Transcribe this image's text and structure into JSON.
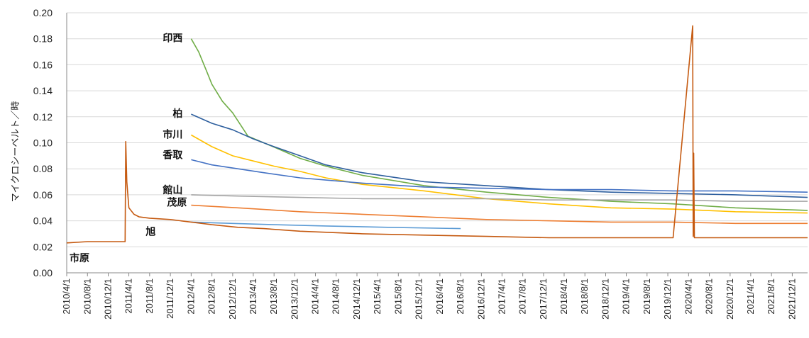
{
  "chart_data": {
    "type": "line",
    "title": "",
    "xlabel": "",
    "ylabel": "マイクロシーベルト／時",
    "ylim": [
      0,
      0.2
    ],
    "yticks": [
      "0.00",
      "0.02",
      "0.04",
      "0.06",
      "0.08",
      "0.10",
      "0.12",
      "0.14",
      "0.16",
      "0.18",
      "0.20"
    ],
    "xlim": [
      "2010-04-01",
      "2022-03-01"
    ],
    "xticks": [
      "2010/4/1",
      "2010/8/1",
      "2010/12/1",
      "2011/4/1",
      "2011/8/1",
      "2011/12/1",
      "2012/4/1",
      "2012/8/1",
      "2012/12/1",
      "2013/4/1",
      "2013/8/1",
      "2013/12/1",
      "2014/4/1",
      "2014/8/1",
      "2014/12/1",
      "2015/4/1",
      "2015/8/1",
      "2015/12/1",
      "2016/4/1",
      "2016/8/1",
      "2016/12/1",
      "2017/4/1",
      "2017/8/1",
      "2017/12/1",
      "2018/4/1",
      "2018/8/1",
      "2018/12/1",
      "2019/4/1",
      "2019/8/1",
      "2019/12/1",
      "2020/4/1",
      "2020/8/1",
      "2020/12/1",
      "2021/4/1",
      "2021/8/1",
      "2021/12/1"
    ],
    "grid": "horizontal",
    "series": [
      {
        "name": "印西",
        "color": "#70ad47",
        "x": [
          "2012-04-01",
          "2012-05-15",
          "2012-07-01",
          "2012-08-01",
          "2012-10-01",
          "2012-12-01",
          "2013-03-01",
          "2013-06-01",
          "2013-09-01",
          "2014-01-01",
          "2014-06-01",
          "2015-01-01",
          "2016-01-01",
          "2017-01-01",
          "2018-01-01",
          "2019-01-01",
          "2020-01-01",
          "2021-01-01",
          "2022-03-01"
        ],
        "y": [
          0.18,
          0.17,
          0.155,
          0.145,
          0.132,
          0.123,
          0.105,
          0.1,
          0.095,
          0.088,
          0.082,
          0.075,
          0.067,
          0.062,
          0.058,
          0.055,
          0.053,
          0.05,
          0.048
        ]
      },
      {
        "name": "柏",
        "color": "#2e5f9e",
        "x": [
          "2012-04-01",
          "2012-08-01",
          "2012-12-01",
          "2013-04-01",
          "2013-08-01",
          "2014-01-01",
          "2014-06-01",
          "2015-01-01",
          "2016-01-01",
          "2017-01-01",
          "2018-01-01",
          "2019-01-01",
          "2020-01-01",
          "2021-01-01",
          "2022-03-01"
        ],
        "y": [
          0.122,
          0.115,
          0.11,
          0.103,
          0.097,
          0.09,
          0.083,
          0.077,
          0.07,
          0.067,
          0.064,
          0.062,
          0.061,
          0.06,
          0.058
        ]
      },
      {
        "name": "市川",
        "color": "#ffc000",
        "x": [
          "2012-04-01",
          "2012-08-01",
          "2012-12-01",
          "2013-04-01",
          "2013-08-01",
          "2014-01-01",
          "2014-06-01",
          "2015-01-01",
          "2016-01-01",
          "2017-01-01",
          "2018-01-01",
          "2019-01-01",
          "2020-01-01",
          "2021-01-01",
          "2022-03-01"
        ],
        "y": [
          0.106,
          0.097,
          0.09,
          0.086,
          0.082,
          0.078,
          0.073,
          0.068,
          0.063,
          0.057,
          0.053,
          0.05,
          0.049,
          0.047,
          0.046
        ]
      },
      {
        "name": "香取",
        "color": "#4472c4",
        "x": [
          "2012-04-01",
          "2012-08-01",
          "2013-01-01",
          "2013-06-01",
          "2014-01-01",
          "2015-01-01",
          "2016-01-01",
          "2017-01-01",
          "2018-01-01",
          "2019-01-01",
          "2020-01-01",
          "2021-01-01",
          "2022-03-01"
        ],
        "y": [
          0.087,
          0.083,
          0.08,
          0.077,
          0.073,
          0.069,
          0.066,
          0.065,
          0.064,
          0.064,
          0.063,
          0.063,
          0.062
        ]
      },
      {
        "name": "館山",
        "color": "#a5a5a5",
        "x": [
          "2012-04-01",
          "2013-01-01",
          "2014-01-01",
          "2015-01-01",
          "2016-01-01",
          "2017-01-01",
          "2018-01-01",
          "2019-01-01",
          "2020-01-01",
          "2021-01-01",
          "2022-03-01"
        ],
        "y": [
          0.06,
          0.059,
          0.058,
          0.057,
          0.057,
          0.057,
          0.056,
          0.056,
          0.056,
          0.055,
          0.055
        ]
      },
      {
        "name": "茂原",
        "color": "#ed7d31",
        "x": [
          "2012-04-01",
          "2013-01-01",
          "2014-01-01",
          "2015-01-01",
          "2016-01-01",
          "2017-01-01",
          "2018-01-01",
          "2019-01-01",
          "2020-01-01",
          "2021-01-01",
          "2022-03-01"
        ],
        "y": [
          0.052,
          0.05,
          0.047,
          0.045,
          0.043,
          0.041,
          0.04,
          0.039,
          0.039,
          0.038,
          0.038
        ]
      },
      {
        "name": "旭",
        "color": "#5b9bd5",
        "x": [
          "2012-04-01",
          "2012-12-01",
          "2013-08-01",
          "2014-06-01",
          "2015-06-01",
          "2016-08-01"
        ],
        "y": [
          0.039,
          0.038,
          0.037,
          0.036,
          0.035,
          0.034
        ]
      },
      {
        "name": "市原",
        "color": "#c55a11",
        "x": [
          "2010-04-01",
          "2010-08-01",
          "2010-12-01",
          "2011-03-10",
          "2011-03-14",
          "2011-03-20",
          "2011-04-01",
          "2011-05-01",
          "2011-06-01",
          "2011-08-01",
          "2011-12-01",
          "2012-04-01",
          "2012-08-01",
          "2013-01-01",
          "2013-06-01",
          "2014-01-01",
          "2015-01-01",
          "2016-01-01",
          "2017-01-01",
          "2018-01-01",
          "2019-01-01",
          "2020-01-01",
          "2020-04-25",
          "2020-04-28",
          "2020-05-01",
          "2020-05-05",
          "2021-01-01",
          "2022-03-01"
        ],
        "y": [
          0.023,
          0.024,
          0.024,
          0.024,
          0.101,
          0.07,
          0.05,
          0.045,
          0.043,
          0.042,
          0.041,
          0.039,
          0.037,
          0.035,
          0.034,
          0.032,
          0.03,
          0.029,
          0.028,
          0.027,
          0.027,
          0.027,
          0.19,
          0.028,
          0.092,
          0.027,
          0.027,
          0.027
        ]
      }
    ]
  }
}
